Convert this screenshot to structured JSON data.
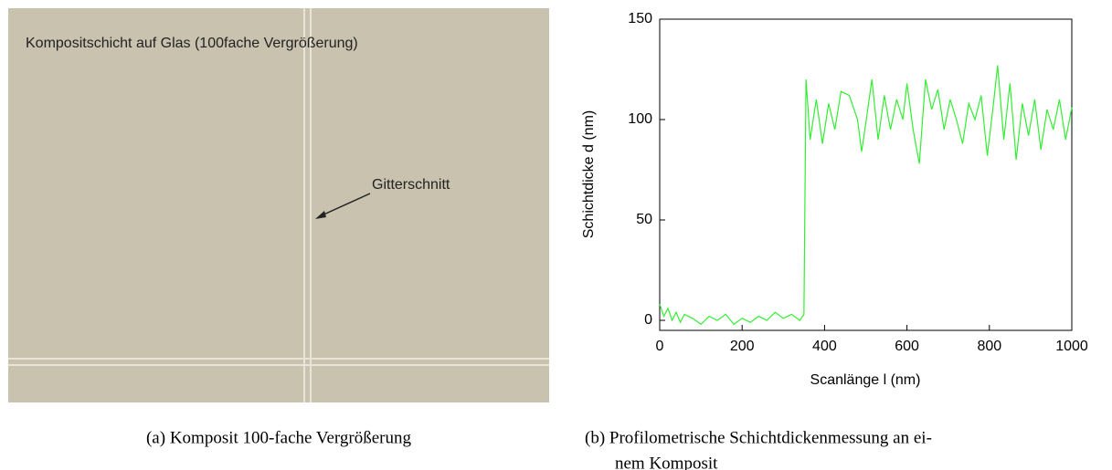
{
  "photo": {
    "title": "Kompositschicht auf Glas (100fache Vergrößerung)",
    "annotation": "Gitterschnitt"
  },
  "captions": {
    "a": "(a) Komposit 100-fache Vergrößerung",
    "b": [
      "(b) Profilometrische Schichtdickenmessung an ei-",
      "nem Komposit"
    ]
  },
  "chart_data": {
    "type": "line",
    "xlabel": "Scanlänge l (nm)",
    "ylabel": "Schichtdicke d (nm)",
    "xlim": [
      0,
      1000
    ],
    "ylim": [
      -5,
      150
    ],
    "xticks": [
      0,
      200,
      400,
      600,
      800,
      1000
    ],
    "yticks": [
      0,
      50,
      100,
      150
    ],
    "series": [
      {
        "color": "#33ee33",
        "x": [
          0,
          10,
          20,
          30,
          40,
          50,
          60,
          80,
          100,
          120,
          140,
          160,
          180,
          200,
          220,
          240,
          260,
          280,
          300,
          320,
          340,
          350,
          355,
          365,
          380,
          395,
          410,
          425,
          440,
          460,
          480,
          490,
          500,
          515,
          530,
          545,
          560,
          575,
          590,
          600,
          615,
          630,
          645,
          660,
          675,
          690,
          705,
          720,
          735,
          750,
          765,
          780,
          795,
          810,
          820,
          835,
          850,
          865,
          880,
          895,
          910,
          925,
          940,
          955,
          970,
          985,
          1000
        ],
        "values": [
          8,
          2,
          6,
          0,
          4,
          -1,
          3,
          1,
          -2,
          2,
          0,
          3,
          -2,
          1,
          -1,
          2,
          0,
          4,
          1,
          3,
          0,
          3,
          120,
          90,
          110,
          88,
          108,
          95,
          114,
          112,
          100,
          84,
          98,
          120,
          90,
          112,
          95,
          110,
          100,
          118,
          95,
          78,
          120,
          105,
          115,
          95,
          110,
          100,
          88,
          108,
          100,
          112,
          82,
          108,
          127,
          90,
          118,
          80,
          108,
          92,
          110,
          85,
          105,
          95,
          110,
          90,
          106
        ]
      }
    ]
  }
}
